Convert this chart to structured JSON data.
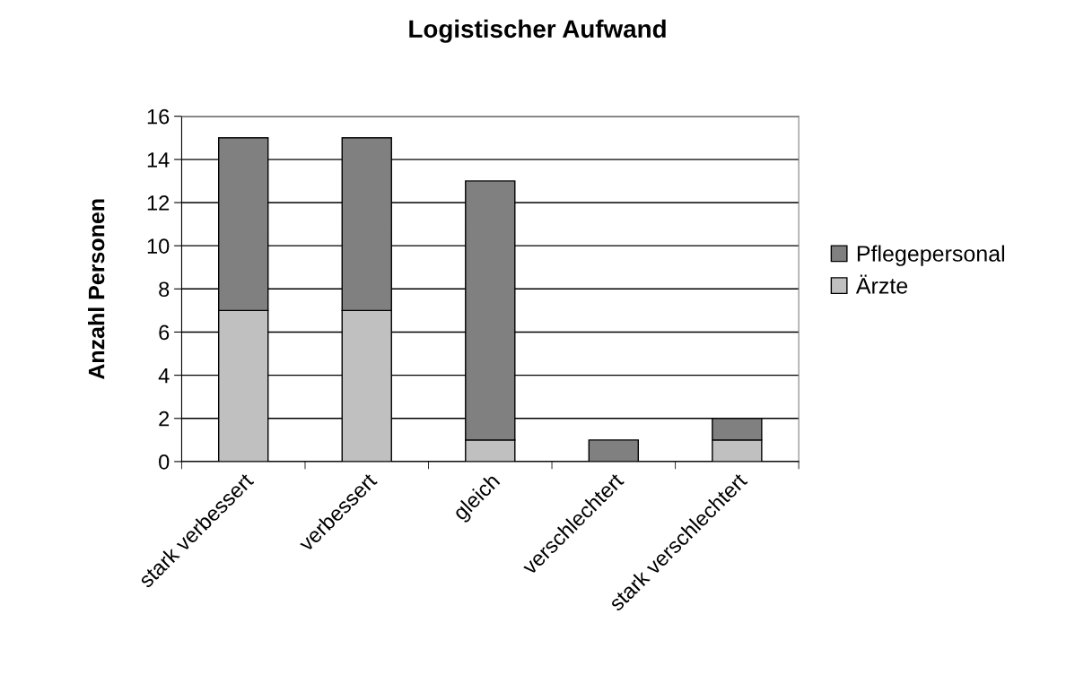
{
  "chart_data": {
    "type": "bar",
    "title": "Logistischer Aufwand",
    "ylabel": "Anzahl Personen",
    "categories": [
      "stark verbessert",
      "verbessert",
      "gleich",
      "verschlechtert",
      "stark verschlechtert"
    ],
    "stacked": true,
    "series": [
      {
        "name": "Ärzte",
        "color": "#c0c0c0",
        "values": [
          7,
          7,
          1,
          0,
          1
        ]
      },
      {
        "name": "Pflegepersonal",
        "color": "#808080",
        "values": [
          8,
          8,
          12,
          1,
          1
        ]
      }
    ],
    "ylim": [
      0,
      16
    ],
    "yticks": [
      0,
      2,
      4,
      6,
      8,
      10,
      12,
      14,
      16
    ],
    "grid": "y",
    "legend": "right"
  }
}
